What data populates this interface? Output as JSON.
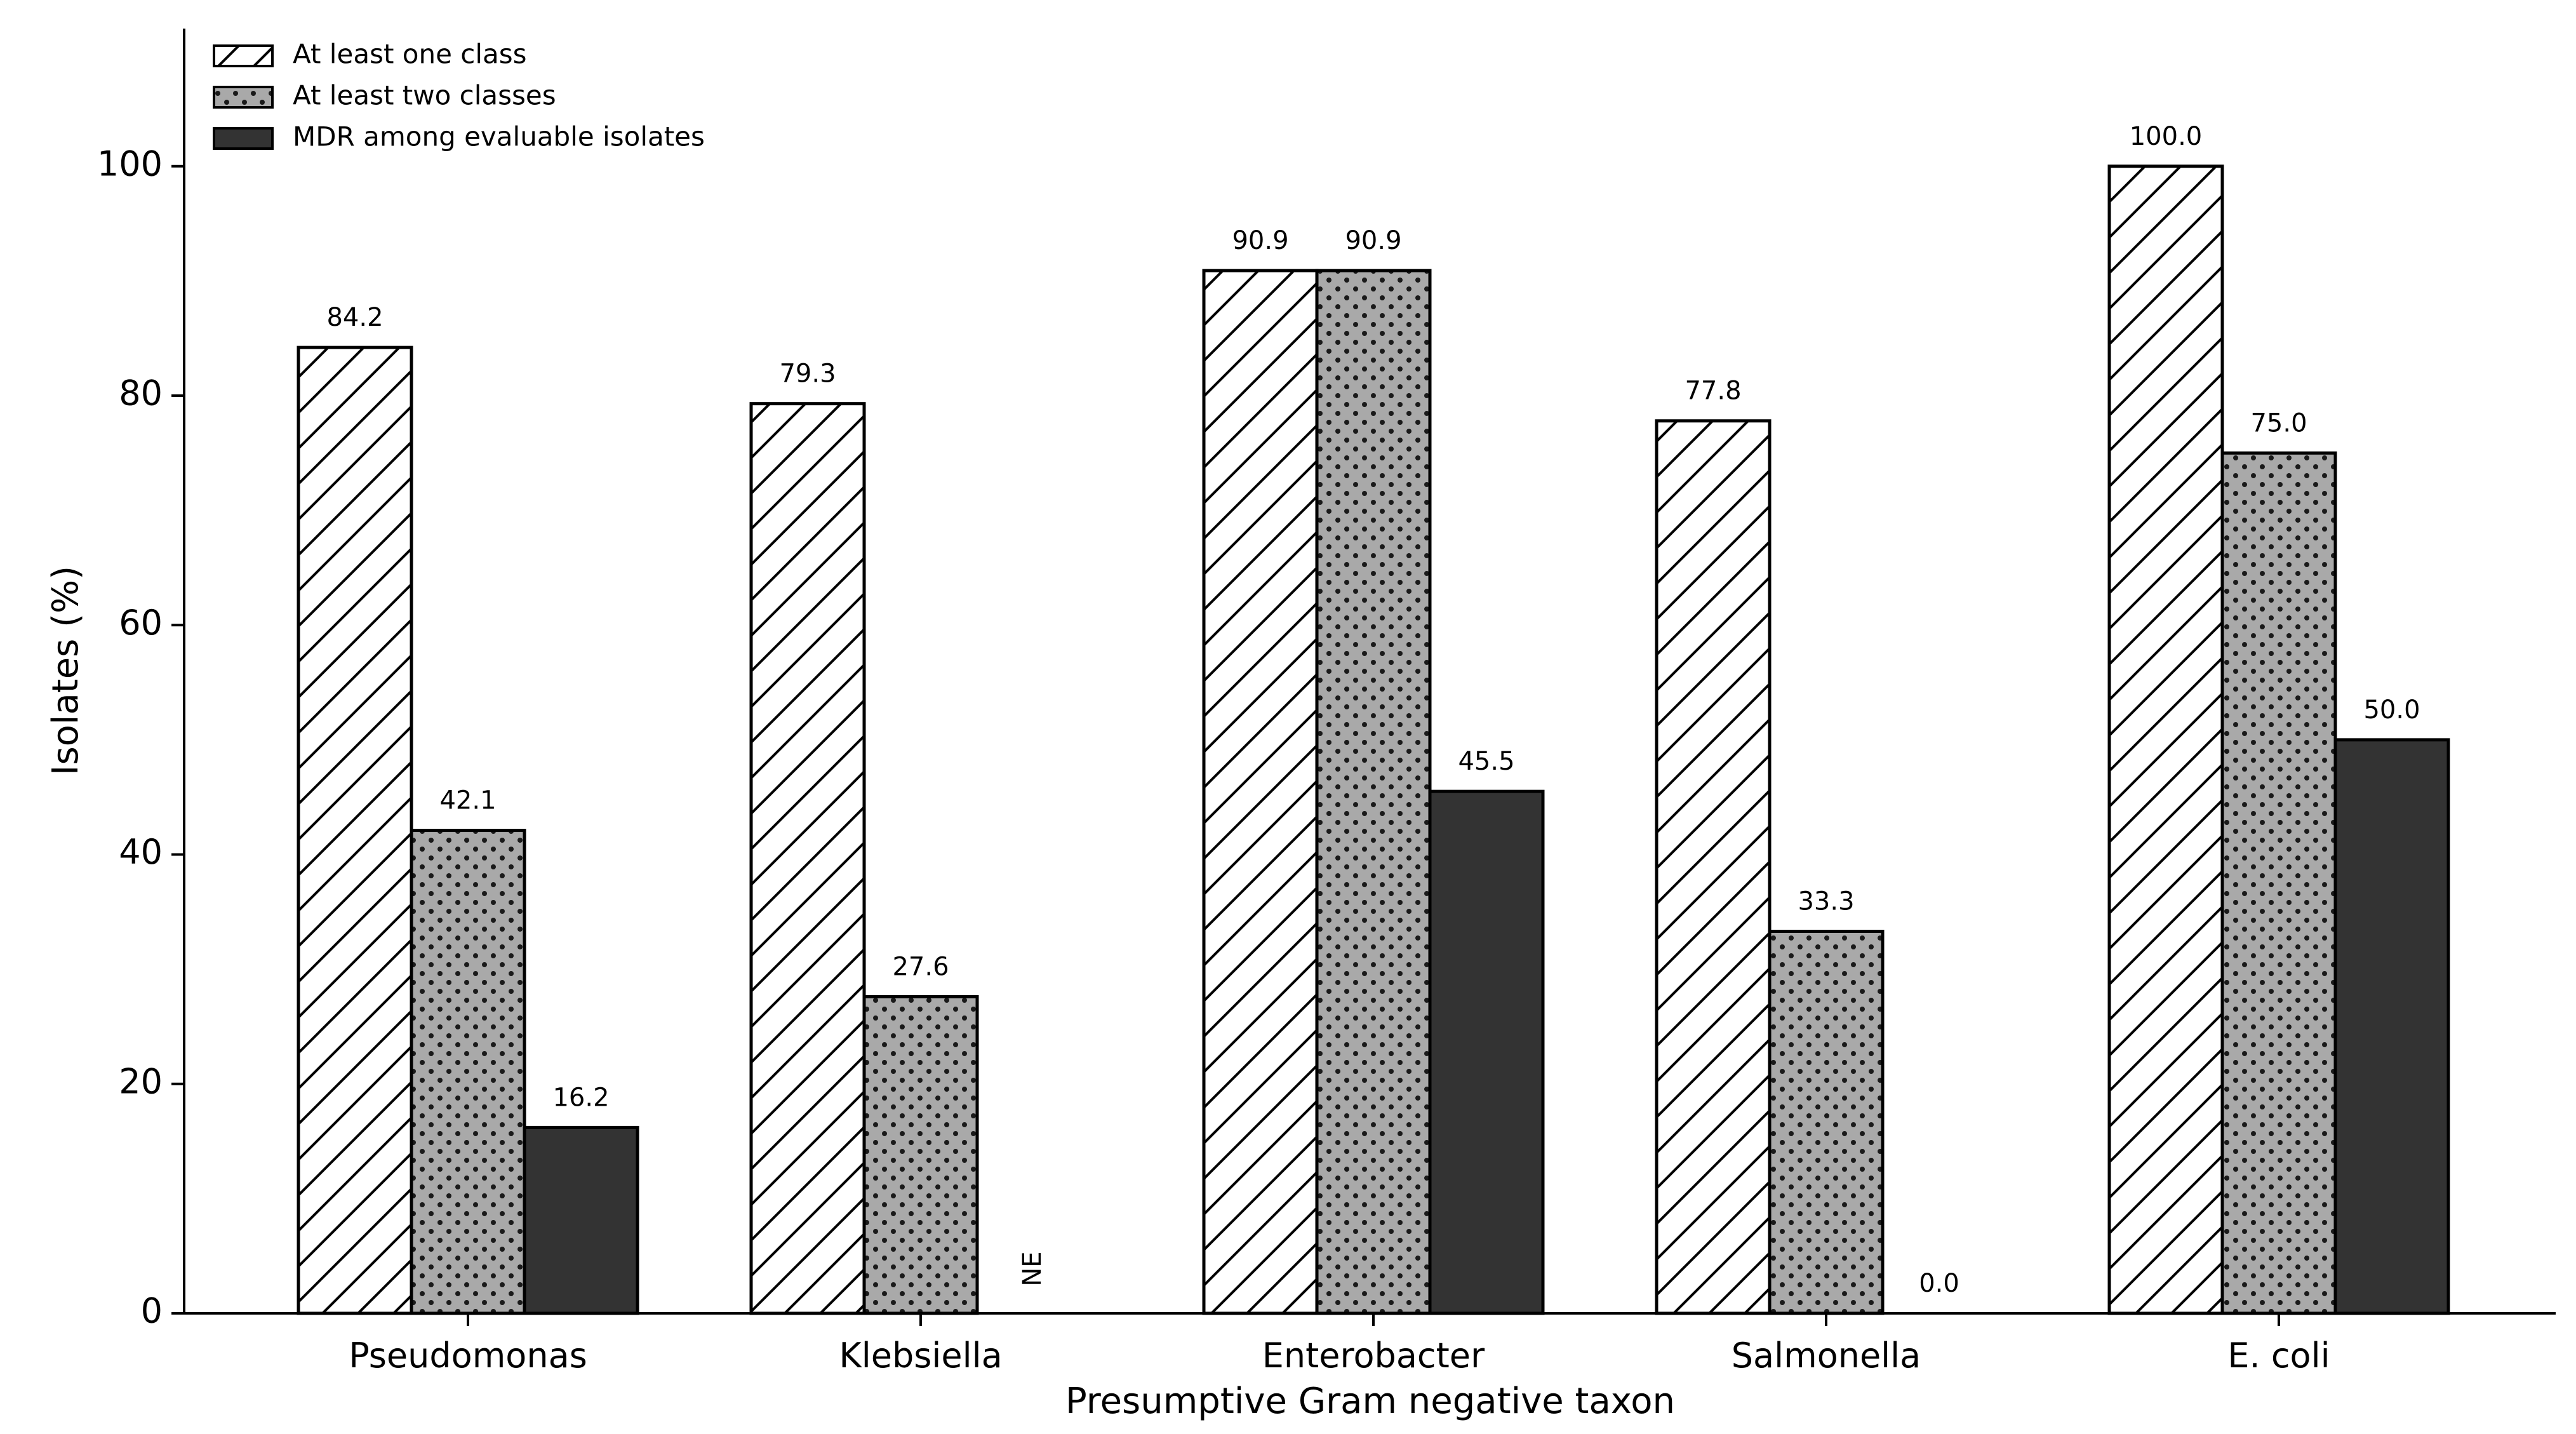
{
  "chart_data": {
    "type": "bar",
    "title": "",
    "xlabel": "Presumptive Gram negative taxon",
    "ylabel": "Isolates (%)",
    "ylim": [
      0,
      112
    ],
    "yticks": [
      0,
      20,
      40,
      60,
      80,
      100
    ],
    "categories": [
      "Pseudomonas",
      "Klebsiella",
      "Enterobacter",
      "Salmonella",
      "E. coli"
    ],
    "series": [
      {
        "name": "At least one class",
        "fill": "#ffffff",
        "pattern": "diagonal-hatch",
        "values": [
          84.2,
          79.3,
          90.9,
          77.8,
          100.0
        ],
        "labels": [
          "84.2",
          "79.3",
          "90.9",
          "77.8",
          "100.0"
        ]
      },
      {
        "name": "At least two classes",
        "fill": "#a9a9a9",
        "pattern": "dots",
        "values": [
          42.1,
          27.6,
          90.9,
          33.3,
          75.0
        ],
        "labels": [
          "42.1",
          "27.6",
          "90.9",
          "33.3",
          "75.0"
        ]
      },
      {
        "name": "MDR among evaluable isolates",
        "fill": "#333333",
        "pattern": "solid",
        "values": [
          16.2,
          null,
          45.5,
          0.0,
          50.0
        ],
        "labels": [
          "16.2",
          "NE",
          "45.5",
          "0.0",
          "50.0"
        ]
      }
    ],
    "legend_position": "top-left",
    "grid": false
  }
}
